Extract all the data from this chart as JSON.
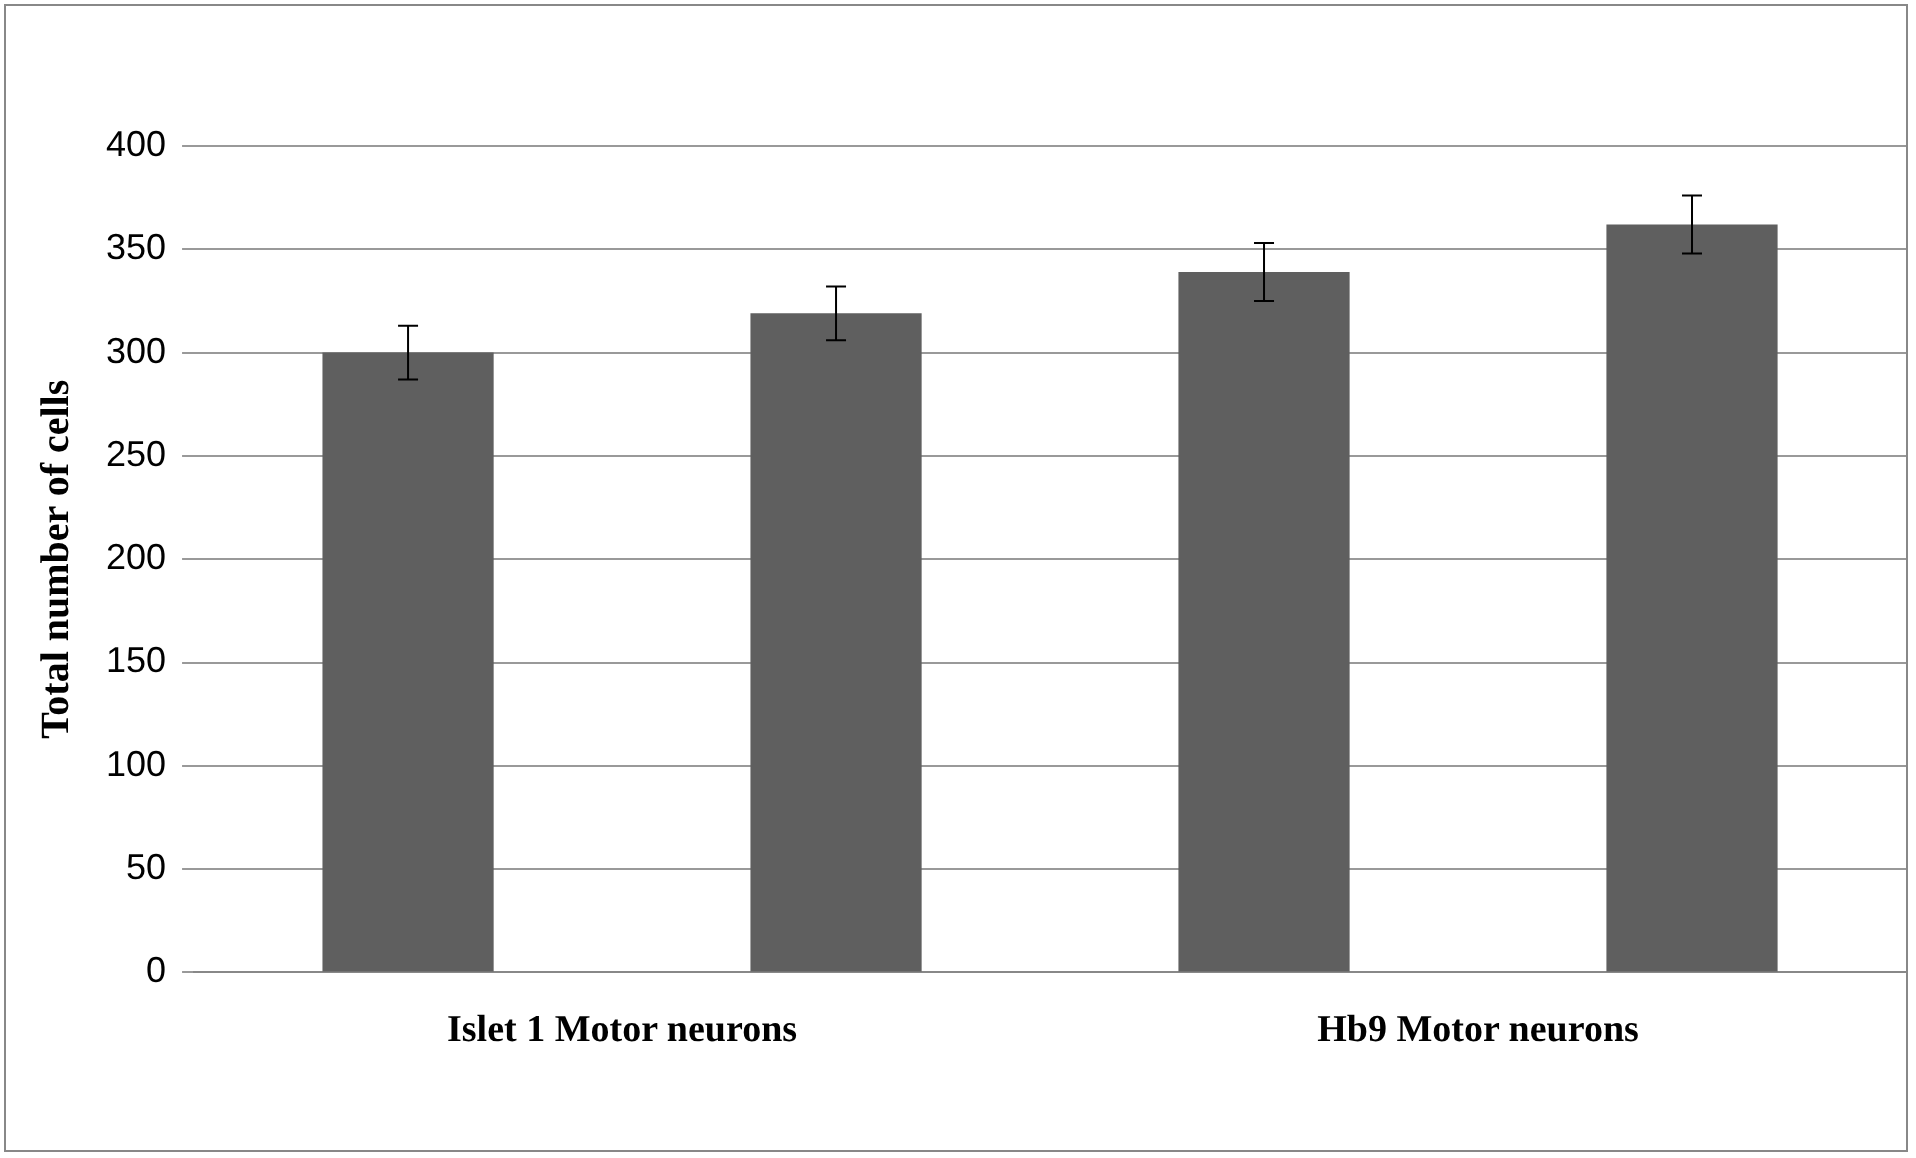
{
  "chart_data": {
    "type": "bar",
    "ylabel": "Total number of cells",
    "categories": [
      "Islet 1 Motor neurons",
      "Hb9 Motor neurons"
    ],
    "series": [
      {
        "color": "#5f5f5f",
        "values": [
          300,
          339
        ],
        "errors": [
          13,
          14
        ]
      },
      {
        "color": "#5f5f5f",
        "values": [
          319,
          362
        ],
        "errors": [
          13,
          14
        ]
      }
    ],
    "ylim": [
      0,
      400
    ],
    "yticks": [
      0,
      50,
      100,
      150,
      200,
      250,
      300,
      350,
      400
    ],
    "grid": "y",
    "legend": false
  }
}
